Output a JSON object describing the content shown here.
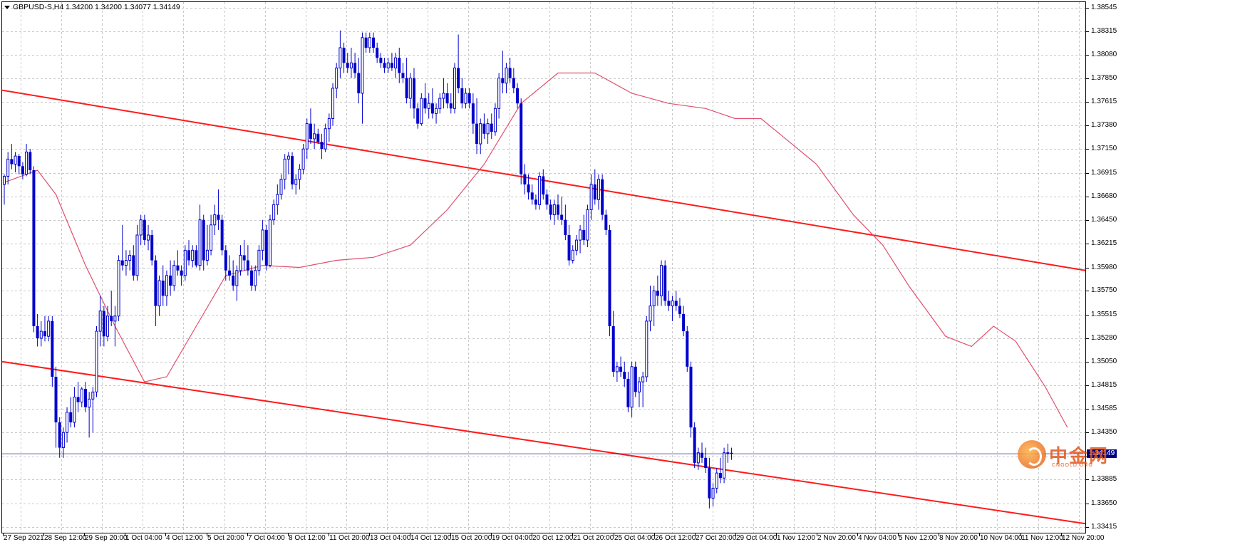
{
  "window": {
    "symbol_info": "GBPUSD-S,H4  1.34200 1.34200 1.34077 1.34149"
  },
  "colors": {
    "background": "#ffffff",
    "grid": "#c8c8c8",
    "candle": "#0000cc",
    "moving_average": "#e0506e",
    "trendline": "#ff1a1a",
    "current_price": "#000080"
  },
  "current_price": {
    "value": 1.34149,
    "label": "1.34149"
  },
  "y_axis": {
    "ticks": [
      "1.38545",
      "1.38315",
      "1.38080",
      "1.37850",
      "1.37615",
      "1.37380",
      "1.37150",
      "1.36915",
      "1.36680",
      "1.36450",
      "1.36215",
      "1.35980",
      "1.35750",
      "1.35515",
      "1.35280",
      "1.35050",
      "1.34815",
      "1.34585",
      "1.34350",
      "1.34115",
      "1.33885",
      "1.33650",
      "1.33415"
    ]
  },
  "x_axis": {
    "labels": [
      "27 Sep 2021",
      "28 Sep 12:00",
      "29 Sep 20:00",
      "1 Oct 04:00",
      "4 Oct 12:00",
      "5 Oct 20:00",
      "7 Oct 04:00",
      "8 Oct 12:00",
      "11 Oct 20:00",
      "13 Oct 04:00",
      "14 Oct 12:00",
      "15 Oct 20:00",
      "19 Oct 04:00",
      "20 Oct 12:00",
      "21 Oct 20:00",
      "25 Oct 04:00",
      "26 Oct 12:00",
      "27 Oct 20:00",
      "29 Oct 04:00",
      "1 Nov 12:00",
      "2 Nov 20:00",
      "4 Nov 04:00",
      "5 Nov 12:00",
      "8 Nov 20:00",
      "10 Nov 04:00",
      "11 Nov 12:00",
      "12 Nov 20:00"
    ]
  },
  "watermark": {
    "text": "中金网",
    "sub": "CNGOLD.ORG"
  },
  "chart_data": {
    "type": "candlestick",
    "symbol": "GBPUSD-S",
    "timeframe": "H4",
    "ylim": [
      1.3336,
      1.386
    ],
    "x_index_range": [
      0,
      239
    ],
    "candles": [
      [
        1.368,
        1.369,
        1.366,
        1.3688
      ],
      [
        1.3688,
        1.3712,
        1.368,
        1.3705
      ],
      [
        1.3705,
        1.372,
        1.3695,
        1.37
      ],
      [
        1.37,
        1.3712,
        1.3692,
        1.3708
      ],
      [
        1.3708,
        1.371,
        1.369,
        1.3698
      ],
      [
        1.3698,
        1.3702,
        1.3685,
        1.369
      ],
      [
        1.369,
        1.372,
        1.3688,
        1.3712
      ],
      [
        1.3712,
        1.3715,
        1.369,
        1.3694
      ],
      [
        1.3694,
        1.3698,
        1.3534,
        1.354
      ],
      [
        1.354,
        1.3552,
        1.352,
        1.3528
      ],
      [
        1.3528,
        1.3545,
        1.352,
        1.3535
      ],
      [
        1.3535,
        1.355,
        1.3525,
        1.353
      ],
      [
        1.353,
        1.355,
        1.3525,
        1.3545
      ],
      [
        1.3545,
        1.355,
        1.348,
        1.349
      ],
      [
        1.349,
        1.35,
        1.342,
        1.3445
      ],
      [
        1.3445,
        1.345,
        1.341,
        1.342
      ],
      [
        1.342,
        1.344,
        1.341,
        1.3435
      ],
      [
        1.3435,
        1.346,
        1.3425,
        1.3455
      ],
      [
        1.3455,
        1.347,
        1.344,
        1.3445
      ],
      [
        1.3445,
        1.348,
        1.344,
        1.347
      ],
      [
        1.347,
        1.3485,
        1.3455,
        1.3465
      ],
      [
        1.3465,
        1.348,
        1.346,
        1.3478
      ],
      [
        1.3478,
        1.3485,
        1.3455,
        1.346
      ],
      [
        1.346,
        1.3475,
        1.343,
        1.3468
      ],
      [
        1.3468,
        1.348,
        1.3435,
        1.3475
      ],
      [
        1.3475,
        1.354,
        1.347,
        1.3535
      ],
      [
        1.3535,
        1.357,
        1.352,
        1.3555
      ],
      [
        1.3555,
        1.356,
        1.352,
        1.353
      ],
      [
        1.353,
        1.356,
        1.3525,
        1.355
      ],
      [
        1.355,
        1.3575,
        1.354,
        1.3545
      ],
      [
        1.3545,
        1.356,
        1.352,
        1.355
      ],
      [
        1.355,
        1.361,
        1.3545,
        1.3605
      ],
      [
        1.3605,
        1.364,
        1.3595,
        1.36
      ],
      [
        1.36,
        1.3615,
        1.359,
        1.3605
      ],
      [
        1.3605,
        1.3615,
        1.3595,
        1.361
      ],
      [
        1.361,
        1.362,
        1.3585,
        1.359
      ],
      [
        1.359,
        1.364,
        1.3585,
        1.363
      ],
      [
        1.363,
        1.365,
        1.362,
        1.3645
      ],
      [
        1.3645,
        1.365,
        1.362,
        1.3625
      ],
      [
        1.3625,
        1.364,
        1.3615,
        1.363
      ],
      [
        1.363,
        1.3635,
        1.36,
        1.3605
      ],
      [
        1.3605,
        1.361,
        1.354,
        1.356
      ],
      [
        1.356,
        1.359,
        1.355,
        1.3585
      ],
      [
        1.3585,
        1.36,
        1.356,
        1.357
      ],
      [
        1.357,
        1.3595,
        1.356,
        1.359
      ],
      [
        1.359,
        1.3605,
        1.357,
        1.358
      ],
      [
        1.358,
        1.3605,
        1.3575,
        1.36
      ],
      [
        1.36,
        1.3615,
        1.359,
        1.3595
      ],
      [
        1.3595,
        1.36,
        1.358,
        1.359
      ],
      [
        1.359,
        1.362,
        1.3585,
        1.3615
      ],
      [
        1.3615,
        1.3625,
        1.36,
        1.3605
      ],
      [
        1.3605,
        1.362,
        1.3598,
        1.3615
      ],
      [
        1.3615,
        1.362,
        1.3598,
        1.36
      ],
      [
        1.36,
        1.366,
        1.3595,
        1.3645
      ],
      [
        1.3645,
        1.365,
        1.3595,
        1.3605
      ],
      [
        1.3605,
        1.364,
        1.36,
        1.3615
      ],
      [
        1.3615,
        1.365,
        1.361,
        1.364
      ],
      [
        1.364,
        1.366,
        1.363,
        1.365
      ],
      [
        1.365,
        1.3675,
        1.3635,
        1.3645
      ],
      [
        1.3645,
        1.365,
        1.361,
        1.3615
      ],
      [
        1.3615,
        1.362,
        1.3585,
        1.3595
      ],
      [
        1.3595,
        1.361,
        1.3585,
        1.359
      ],
      [
        1.359,
        1.3605,
        1.3575,
        1.358
      ],
      [
        1.358,
        1.36,
        1.3565,
        1.3595
      ],
      [
        1.3595,
        1.362,
        1.359,
        1.361
      ],
      [
        1.361,
        1.3625,
        1.3595,
        1.3605
      ],
      [
        1.3605,
        1.362,
        1.359,
        1.3595
      ],
      [
        1.3595,
        1.36,
        1.3575,
        1.358
      ],
      [
        1.358,
        1.36,
        1.3575,
        1.3595
      ],
      [
        1.3595,
        1.362,
        1.359,
        1.3615
      ],
      [
        1.3615,
        1.3645,
        1.3605,
        1.3635
      ],
      [
        1.3635,
        1.364,
        1.3595,
        1.36
      ],
      [
        1.36,
        1.365,
        1.3598,
        1.3645
      ],
      [
        1.3645,
        1.3665,
        1.364,
        1.366
      ],
      [
        1.366,
        1.368,
        1.365,
        1.367
      ],
      [
        1.367,
        1.369,
        1.3665,
        1.3685
      ],
      [
        1.3685,
        1.371,
        1.3675,
        1.3705
      ],
      [
        1.3705,
        1.3712,
        1.369,
        1.3708
      ],
      [
        1.3708,
        1.3712,
        1.3675,
        1.368
      ],
      [
        1.368,
        1.369,
        1.367,
        1.3685
      ],
      [
        1.3685,
        1.37,
        1.3675,
        1.3695
      ],
      [
        1.3695,
        1.372,
        1.369,
        1.3715
      ],
      [
        1.3715,
        1.3745,
        1.3705,
        1.374
      ],
      [
        1.374,
        1.3755,
        1.372,
        1.3725
      ],
      [
        1.3725,
        1.374,
        1.3715,
        1.373
      ],
      [
        1.373,
        1.3735,
        1.372,
        1.3722
      ],
      [
        1.3722,
        1.373,
        1.3705,
        1.3715
      ],
      [
        1.3715,
        1.374,
        1.3712,
        1.3735
      ],
      [
        1.3735,
        1.375,
        1.3722,
        1.3745
      ],
      [
        1.3745,
        1.378,
        1.3738,
        1.3775
      ],
      [
        1.3775,
        1.38,
        1.3765,
        1.3795
      ],
      [
        1.3795,
        1.3832,
        1.3785,
        1.3815
      ],
      [
        1.3815,
        1.382,
        1.379,
        1.38
      ],
      [
        1.38,
        1.381,
        1.379,
        1.3795
      ],
      [
        1.3795,
        1.3815,
        1.3785,
        1.38
      ],
      [
        1.38,
        1.381,
        1.3785,
        1.379
      ],
      [
        1.379,
        1.3805,
        1.376,
        1.377
      ],
      [
        1.377,
        1.383,
        1.374,
        1.3825
      ],
      [
        1.3825,
        1.383,
        1.381,
        1.3815
      ],
      [
        1.3815,
        1.383,
        1.381,
        1.3825
      ],
      [
        1.3825,
        1.383,
        1.381,
        1.3815
      ],
      [
        1.3815,
        1.382,
        1.38,
        1.3805
      ],
      [
        1.3805,
        1.381,
        1.3795,
        1.38
      ],
      [
        1.38,
        1.3805,
        1.379,
        1.3795
      ],
      [
        1.3795,
        1.3805,
        1.379,
        1.38
      ],
      [
        1.38,
        1.381,
        1.3792,
        1.3795
      ],
      [
        1.3795,
        1.381,
        1.3785,
        1.3805
      ],
      [
        1.3805,
        1.3815,
        1.378,
        1.379
      ],
      [
        1.379,
        1.38,
        1.378,
        1.3785
      ],
      [
        1.3785,
        1.3805,
        1.376,
        1.3765
      ],
      [
        1.3765,
        1.379,
        1.3755,
        1.3785
      ],
      [
        1.3785,
        1.3795,
        1.3745,
        1.3755
      ],
      [
        1.3755,
        1.376,
        1.3735,
        1.374
      ],
      [
        1.374,
        1.377,
        1.3738,
        1.3765
      ],
      [
        1.3765,
        1.378,
        1.375,
        1.3755
      ],
      [
        1.3755,
        1.377,
        1.3745,
        1.376
      ],
      [
        1.376,
        1.3775,
        1.3745,
        1.375
      ],
      [
        1.375,
        1.376,
        1.374,
        1.3755
      ],
      [
        1.3755,
        1.377,
        1.375,
        1.3765
      ],
      [
        1.3765,
        1.3785,
        1.3755,
        1.377
      ],
      [
        1.377,
        1.378,
        1.3755,
        1.376
      ],
      [
        1.376,
        1.377,
        1.375,
        1.3755
      ],
      [
        1.3755,
        1.38,
        1.375,
        1.3795
      ],
      [
        1.3795,
        1.3828,
        1.377,
        1.3775
      ],
      [
        1.3775,
        1.3785,
        1.3755,
        1.376
      ],
      [
        1.376,
        1.3775,
        1.3755,
        1.377
      ],
      [
        1.377,
        1.3775,
        1.3755,
        1.376
      ],
      [
        1.376,
        1.377,
        1.373,
        1.374
      ],
      [
        1.374,
        1.3765,
        1.371,
        1.372
      ],
      [
        1.372,
        1.3745,
        1.371,
        1.374
      ],
      [
        1.374,
        1.375,
        1.3725,
        1.373
      ],
      [
        1.373,
        1.3745,
        1.372,
        1.374
      ],
      [
        1.374,
        1.375,
        1.3725,
        1.3732
      ],
      [
        1.3732,
        1.376,
        1.3728,
        1.3755
      ],
      [
        1.3755,
        1.379,
        1.3745,
        1.3785
      ],
      [
        1.3785,
        1.3812,
        1.377,
        1.378
      ],
      [
        1.378,
        1.38,
        1.377,
        1.3795
      ],
      [
        1.3795,
        1.3805,
        1.378,
        1.3785
      ],
      [
        1.3785,
        1.3795,
        1.377,
        1.3775
      ],
      [
        1.3775,
        1.378,
        1.3755,
        1.376
      ],
      [
        1.376,
        1.3765,
        1.368,
        1.369
      ],
      [
        1.369,
        1.37,
        1.367,
        1.368
      ],
      [
        1.368,
        1.369,
        1.3665,
        1.3672
      ],
      [
        1.3672,
        1.368,
        1.366,
        1.3665
      ],
      [
        1.3665,
        1.367,
        1.3655,
        1.366
      ],
      [
        1.366,
        1.3692,
        1.3655,
        1.3688
      ],
      [
        1.3688,
        1.3695,
        1.3665,
        1.367
      ],
      [
        1.367,
        1.3675,
        1.3655,
        1.366
      ],
      [
        1.366,
        1.3665,
        1.3645,
        1.365
      ],
      [
        1.365,
        1.3665,
        1.364,
        1.366
      ],
      [
        1.366,
        1.367,
        1.3645,
        1.365
      ],
      [
        1.365,
        1.3668,
        1.364,
        1.3645
      ],
      [
        1.3645,
        1.366,
        1.3625,
        1.363
      ],
      [
        1.363,
        1.364,
        1.36,
        1.3605
      ],
      [
        1.3605,
        1.362,
        1.3602,
        1.3615
      ],
      [
        1.3615,
        1.363,
        1.361,
        1.3625
      ],
      [
        1.3625,
        1.364,
        1.3612,
        1.3635
      ],
      [
        1.3635,
        1.365,
        1.362,
        1.3625
      ],
      [
        1.3625,
        1.366,
        1.3618,
        1.3655
      ],
      [
        1.3655,
        1.369,
        1.3645,
        1.368
      ],
      [
        1.368,
        1.3695,
        1.366,
        1.3665
      ],
      [
        1.3665,
        1.369,
        1.3655,
        1.3685
      ],
      [
        1.3685,
        1.369,
        1.3645,
        1.365
      ],
      [
        1.365,
        1.3655,
        1.363,
        1.3635
      ],
      [
        1.3635,
        1.364,
        1.353,
        1.354
      ],
      [
        1.354,
        1.3555,
        1.349,
        1.3495
      ],
      [
        1.3495,
        1.3505,
        1.3485,
        1.35
      ],
      [
        1.35,
        1.351,
        1.349,
        1.3495
      ],
      [
        1.3495,
        1.3505,
        1.348,
        1.3488
      ],
      [
        1.3488,
        1.3495,
        1.3455,
        1.346
      ],
      [
        1.346,
        1.3505,
        1.345,
        1.35
      ],
      [
        1.35,
        1.3505,
        1.347,
        1.3475
      ],
      [
        1.3475,
        1.349,
        1.346,
        1.3485
      ],
      [
        1.3485,
        1.3495,
        1.346,
        1.349
      ],
      [
        1.349,
        1.355,
        1.3485,
        1.3545
      ],
      [
        1.3545,
        1.358,
        1.3535,
        1.356
      ],
      [
        1.356,
        1.358,
        1.354,
        1.3575
      ],
      [
        1.3575,
        1.359,
        1.356,
        1.357
      ],
      [
        1.357,
        1.3605,
        1.356,
        1.36
      ],
      [
        1.36,
        1.3605,
        1.356,
        1.3565
      ],
      [
        1.3565,
        1.3575,
        1.3555,
        1.356
      ],
      [
        1.356,
        1.357,
        1.3545,
        1.3565
      ],
      [
        1.3565,
        1.3575,
        1.3555,
        1.356
      ],
      [
        1.356,
        1.3568,
        1.3548,
        1.3552
      ],
      [
        1.3552,
        1.356,
        1.353,
        1.3535
      ],
      [
        1.3535,
        1.354,
        1.3495,
        1.35
      ],
      [
        1.35,
        1.3505,
        1.343,
        1.344
      ],
      [
        1.344,
        1.3445,
        1.34,
        1.3405
      ],
      [
        1.3405,
        1.342,
        1.3398,
        1.3415
      ],
      [
        1.3415,
        1.3425,
        1.3405,
        1.341
      ],
      [
        1.341,
        1.342,
        1.3395,
        1.34
      ],
      [
        1.34,
        1.341,
        1.336,
        1.337
      ],
      [
        1.337,
        1.3385,
        1.3362,
        1.338
      ],
      [
        1.338,
        1.34,
        1.3375,
        1.3395
      ],
      [
        1.3395,
        1.341,
        1.3385,
        1.339
      ],
      [
        1.339,
        1.342,
        1.3385,
        1.3415
      ],
      [
        1.3415,
        1.3424,
        1.3405,
        1.3415
      ],
      [
        1.3415,
        1.342,
        1.3408,
        1.3414
      ]
    ],
    "moving_average": [
      [
        0,
        1.3682
      ],
      [
        6,
        1.369
      ],
      [
        9,
        1.3694
      ],
      [
        14,
        1.367
      ],
      [
        22,
        1.36
      ],
      [
        30,
        1.354
      ],
      [
        38,
        1.3485
      ],
      [
        44,
        1.349
      ],
      [
        52,
        1.354
      ],
      [
        60,
        1.359
      ],
      [
        70,
        1.36
      ],
      [
        80,
        1.3598
      ],
      [
        90,
        1.3605
      ],
      [
        100,
        1.3608
      ],
      [
        110,
        1.362
      ],
      [
        120,
        1.3655
      ],
      [
        130,
        1.37
      ],
      [
        140,
        1.376
      ],
      [
        150,
        1.379
      ],
      [
        160,
        1.379
      ],
      [
        170,
        1.377
      ],
      [
        180,
        1.376
      ],
      [
        190,
        1.3755
      ],
      [
        198,
        1.3745
      ],
      [
        205,
        1.3745
      ],
      [
        210,
        1.373
      ],
      [
        220,
        1.37
      ],
      [
        230,
        1.365
      ],
      [
        238,
        1.362
      ],
      [
        245,
        1.358
      ],
      [
        255,
        1.353
      ],
      [
        262,
        1.352
      ],
      [
        268,
        1.354
      ],
      [
        274,
        1.3525
      ],
      [
        282,
        1.348
      ],
      [
        288,
        1.344
      ]
    ],
    "trendlines": [
      {
        "from": [
          0,
          1.3773
        ],
        "to": [
          294,
          1.3595
        ]
      },
      {
        "from": [
          0,
          1.3505
        ],
        "to": [
          294,
          1.3345
        ]
      }
    ]
  }
}
